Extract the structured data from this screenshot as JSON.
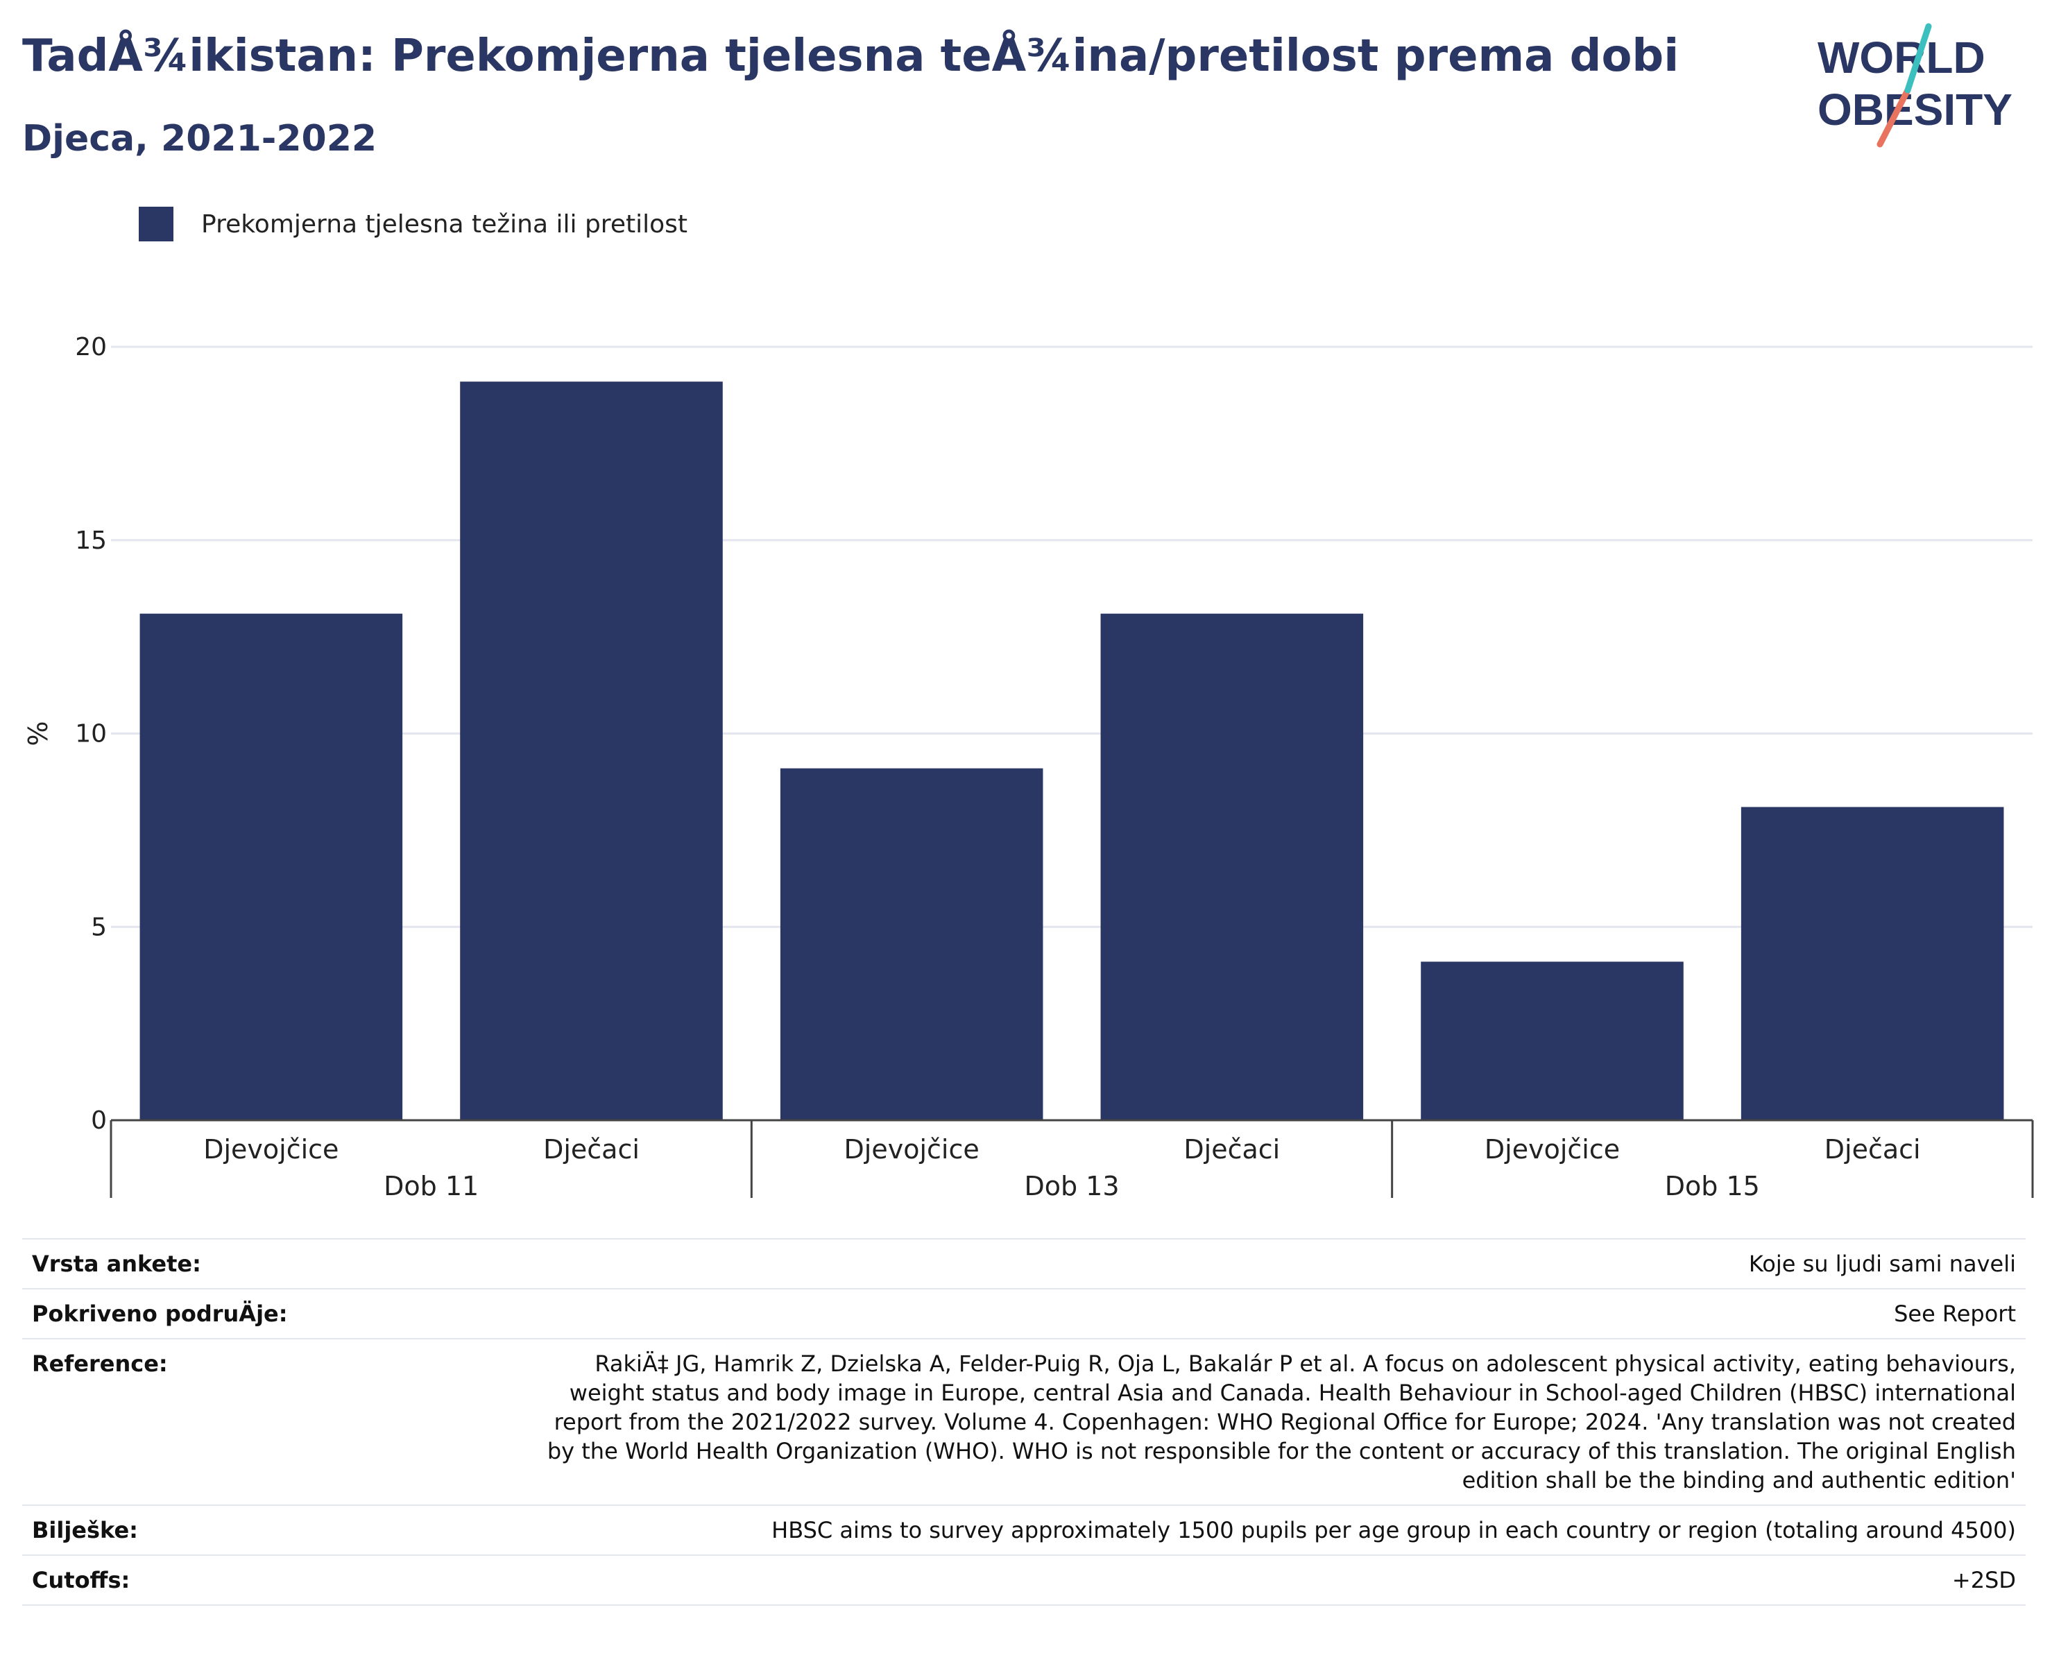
{
  "header": {
    "title": "TadÅ¾ikistan: Prekomjerna tjelesna teÅ¾ina/pretilost prema dobi",
    "subtitle": "Djeca, 2021-2022"
  },
  "logo": {
    "line1": "WORLD",
    "line2": "OBESITY",
    "accent_teal": "#3bbfbf",
    "accent_coral": "#e8735f"
  },
  "legend": {
    "label": "Prekomjerna tjelesna težina ili pretilost",
    "color": "#2a3663"
  },
  "chart_data": {
    "type": "bar",
    "ylabel": "%",
    "ylim": [
      0,
      20
    ],
    "yticks": [
      0,
      5,
      10,
      15,
      20
    ],
    "grid": true,
    "legend_position": "top-left",
    "groups": [
      {
        "label": "Dob 11",
        "categories": [
          "Djevojčice",
          "Dječaci"
        ],
        "values": [
          13.1,
          19.1
        ]
      },
      {
        "label": "Dob 13",
        "categories": [
          "Djevojčice",
          "Dječaci"
        ],
        "values": [
          9.1,
          13.1
        ]
      },
      {
        "label": "Dob 15",
        "categories": [
          "Djevojčice",
          "Dječaci"
        ],
        "values": [
          4.1,
          8.1
        ]
      }
    ],
    "series": [
      {
        "name": "Prekomjerna tjelesna težina ili pretilost",
        "color": "#2a3663"
      }
    ]
  },
  "meta": [
    {
      "label": "Vrsta ankete:",
      "value": "Koje su ljudi sami naveli"
    },
    {
      "label": "Pokriveno podruÄje:",
      "value": "See Report"
    },
    {
      "label": "Reference:",
      "value": "RakiÄ‡ JG, Hamrik Z, Dzielska A, Felder-Puig R, Oja L, Bakalár P et al. A focus on adolescent physical activity, eating behaviours, weight status and body image in Europe, central Asia and Canada. Health Behaviour in School-aged Children (HBSC) international report from the 2021/2022 survey. Volume 4. Copenhagen: WHO Regional Office for Europe; 2024. 'Any translation was not created by the World Health Organization (WHO). WHO is not responsible for the content or accuracy of this translation. The original English edition shall be the binding and authentic edition'"
    },
    {
      "label": "Bilješke:",
      "value": "HBSC aims to survey approximately 1500 pupils per age group in each country or region (totaling around 4500)"
    },
    {
      "label": "Cutoffs:",
      "value": "+2SD"
    }
  ]
}
